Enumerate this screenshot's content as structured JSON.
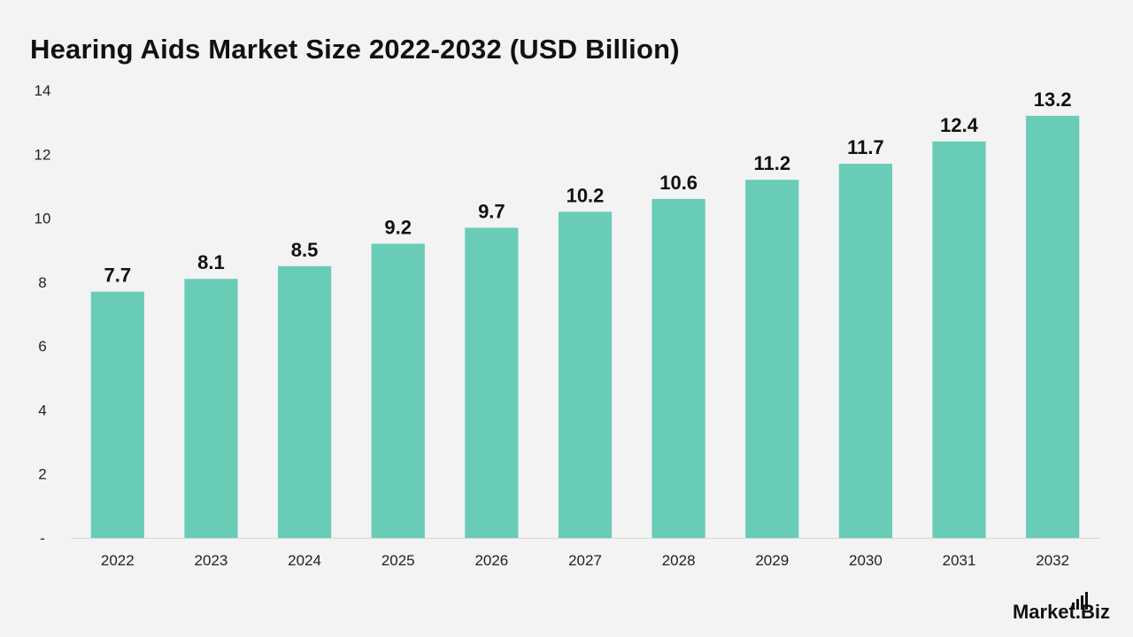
{
  "brand": {
    "name": "Market.Biz"
  },
  "chart_data": {
    "type": "bar",
    "title": "Hearing Aids Market Size 2022-2032 (USD Billion)",
    "xlabel": "",
    "ylabel": "",
    "categories": [
      "2022",
      "2023",
      "2024",
      "2025",
      "2026",
      "2027",
      "2028",
      "2029",
      "2030",
      "2031",
      "2032"
    ],
    "values": [
      7.7,
      8.1,
      8.5,
      9.2,
      9.7,
      10.2,
      10.6,
      11.2,
      11.7,
      12.4,
      13.2
    ],
    "data_labels": [
      "7.7",
      "8.1",
      "8.5",
      "9.2",
      "9.7",
      "10.2",
      "10.6",
      "11.2",
      "11.7",
      "12.4",
      "13.2"
    ],
    "ylim": [
      0,
      14
    ],
    "y_ticks": [
      0,
      2,
      4,
      6,
      8,
      10,
      12,
      14
    ],
    "y_tick_labels": [
      "-",
      "2",
      "4",
      "6",
      "8",
      "10",
      "12",
      "14"
    ],
    "grid": false,
    "legend": "none",
    "colors": {
      "bar": "#68ccb7",
      "background": "#f3f3f3",
      "axis": "#d6d6d6",
      "text": "#111111"
    }
  }
}
